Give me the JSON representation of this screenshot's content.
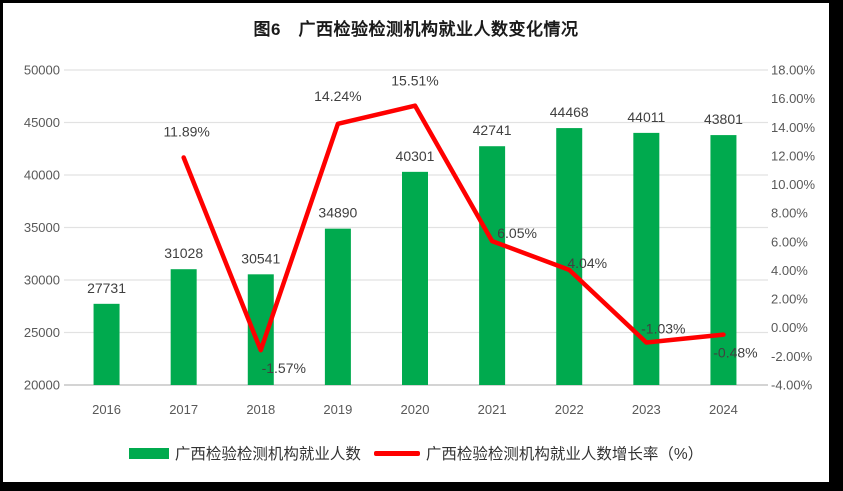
{
  "title": "图6　广西检验检测机构就业人数变化情况",
  "colors": {
    "bar": "#00AA4E",
    "line": "#FF0000",
    "grid": "#E2E2E2",
    "axis_line": "#C6C6C6",
    "axis_text": "#595959",
    "data_label": "#404040",
    "frame_border": "#000000",
    "background": "#ffffff"
  },
  "chart_data": {
    "type": "bar+line combo",
    "title": "图6　广西检验检测机构就业人数变化情况",
    "categories": [
      "2016",
      "2017",
      "2018",
      "2019",
      "2020",
      "2021",
      "2022",
      "2023",
      "2024"
    ],
    "series": [
      {
        "name": "广西检验检测机构就业人数",
        "type": "bar",
        "axis": "left",
        "color": "#00AA4E",
        "values": [
          27731,
          31028,
          30541,
          34890,
          40301,
          42741,
          44468,
          44011,
          43801
        ]
      },
      {
        "name": "广西检验检测机构就业人数增长率（%）",
        "type": "line",
        "axis": "right",
        "color": "#FF0000",
        "values": [
          null,
          11.89,
          -1.57,
          14.24,
          15.51,
          6.05,
          4.04,
          -1.03,
          -0.48
        ]
      }
    ],
    "left_axis": {
      "min": 20000,
      "max": 50000,
      "step": 5000,
      "ticks": [
        "50000",
        "45000",
        "40000",
        "35000",
        "30000",
        "25000",
        "20000"
      ]
    },
    "right_axis": {
      "min": -4,
      "max": 18,
      "step": 2,
      "ticks": [
        "18.00%",
        "16.00%",
        "14.00%",
        "12.00%",
        "10.00%",
        "8.00%",
        "6.00%",
        "4.00%",
        "2.00%",
        "0.00%",
        "-2.00%",
        "-4.00%"
      ]
    },
    "grid": true,
    "legend_position": "bottom"
  },
  "legend": {
    "items": [
      {
        "label": "广西检验检测机构就业人数",
        "swatch": "bar",
        "color": "#00AA4E"
      },
      {
        "label": "广西检验检测机构就业人数增长率（%）",
        "swatch": "line",
        "color": "#FF0000"
      }
    ]
  }
}
